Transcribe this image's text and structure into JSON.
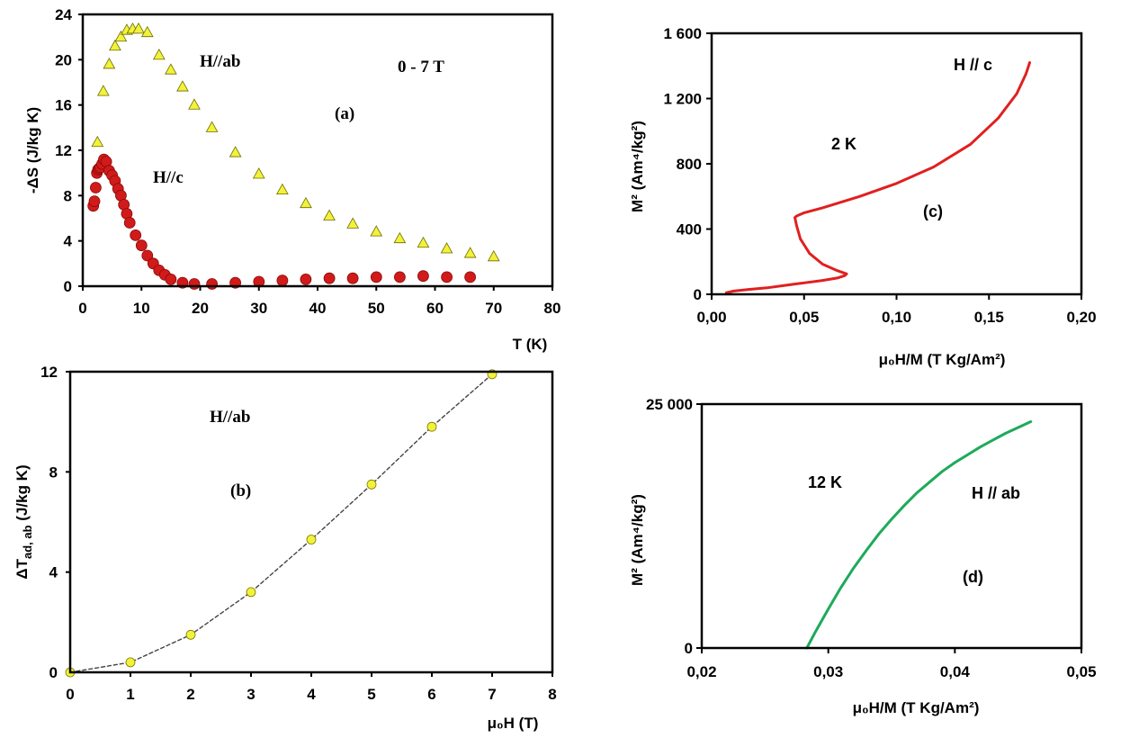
{
  "chart_data": [
    {
      "type": "scatter",
      "xlabel": "T (K)",
      "ylabel": "-ΔS (J/kg K)",
      "xlim": [
        0,
        80
      ],
      "ylim": [
        0,
        24
      ],
      "xticks": [
        "0",
        "10",
        "20",
        "30",
        "40",
        "50",
        "60",
        "70",
        "80"
      ],
      "yticks": [
        "0",
        "4",
        "8",
        "12",
        "16",
        "20",
        "24"
      ],
      "annotations": [
        "(a)",
        "0 - 7 T",
        "H//ab",
        "H//c"
      ],
      "series": [
        {
          "name": "H//ab",
          "marker": "triangle",
          "color": "#f2f23a",
          "x": [
            2.5,
            3.5,
            4.5,
            5.5,
            6.5,
            7.5,
            8.5,
            9.5,
            11,
            13,
            15,
            17,
            19,
            22,
            26,
            30,
            34,
            38,
            42,
            46,
            50,
            54,
            58,
            62,
            66,
            70
          ],
          "y": [
            12.7,
            17.2,
            19.6,
            21.2,
            22.0,
            22.6,
            22.7,
            22.7,
            22.4,
            20.4,
            19.1,
            17.6,
            16.0,
            14.0,
            11.8,
            9.9,
            8.5,
            7.3,
            6.2,
            5.5,
            4.8,
            4.2,
            3.8,
            3.3,
            2.9,
            2.6
          ]
        },
        {
          "name": "H//c",
          "marker": "circle",
          "color": "#d11a1a",
          "x": [
            1.8,
            2.0,
            2.2,
            2.4,
            2.6,
            2.8,
            3.0,
            3.3,
            3.6,
            4.0,
            4.5,
            5.0,
            5.5,
            6.0,
            6.5,
            7.0,
            7.5,
            8.0,
            9.0,
            10,
            11,
            12,
            13,
            14,
            15,
            17,
            19,
            22,
            26,
            30,
            34,
            38,
            42,
            46,
            50,
            54,
            58,
            62,
            66
          ],
          "y": [
            7.1,
            7.5,
            8.7,
            10.0,
            10.3,
            10.4,
            10.5,
            10.8,
            11.2,
            11.0,
            10.2,
            9.8,
            9.3,
            8.6,
            8.0,
            7.2,
            6.4,
            5.6,
            4.5,
            3.6,
            2.7,
            2.0,
            1.4,
            1.0,
            0.6,
            0.3,
            0.2,
            0.2,
            0.3,
            0.4,
            0.5,
            0.6,
            0.7,
            0.7,
            0.8,
            0.8,
            0.9,
            0.8,
            0.8
          ]
        }
      ]
    },
    {
      "type": "line",
      "xlabel": "μ₀H (T)",
      "ylabel": "ΔT_ad, ab (J/kg K)",
      "ylabel_main": "ΔT",
      "ylabel_sub": "ad, ab",
      "ylabel_rest": " (J/kg K)",
      "xlim": [
        0,
        8
      ],
      "ylim": [
        0,
        12
      ],
      "xticks": [
        "0",
        "1",
        "2",
        "3",
        "4",
        "5",
        "6",
        "7",
        "8"
      ],
      "yticks": [
        "0",
        "4",
        "8",
        "12"
      ],
      "annotations": [
        "(b)",
        "H//ab"
      ],
      "series": [
        {
          "marker": "circle",
          "color": "#f2f23a",
          "line_style": "dashed",
          "x": [
            0,
            1,
            2,
            3,
            4,
            5,
            6,
            7
          ],
          "y": [
            0,
            0.4,
            1.5,
            3.2,
            5.3,
            7.5,
            9.8,
            11.9
          ]
        }
      ]
    },
    {
      "type": "line",
      "xlabel": "μ₀H/M (T Kg/Am²)",
      "ylabel": "M² (Am⁴/kg²)",
      "xlim": [
        0,
        0.2
      ],
      "ylim": [
        0,
        1600
      ],
      "xticks": [
        "0,00",
        "0,05",
        "0,10",
        "0,15",
        "0,20"
      ],
      "yticks": [
        "0",
        "400",
        "800",
        "1 200",
        "1 600"
      ],
      "annotations": [
        "(c)",
        "2 K",
        "H // c"
      ],
      "series": [
        {
          "color": "#e02020",
          "x": [
            0.008,
            0.012,
            0.02,
            0.03,
            0.04,
            0.05,
            0.06,
            0.068,
            0.072,
            0.073,
            0.068,
            0.06,
            0.053,
            0.048,
            0.046,
            0.045,
            0.046,
            0.05,
            0.06,
            0.08,
            0.1,
            0.12,
            0.14,
            0.155,
            0.165,
            0.17,
            0.172
          ],
          "y": [
            10,
            20,
            30,
            40,
            55,
            70,
            85,
            100,
            115,
            125,
            145,
            185,
            250,
            340,
            420,
            470,
            480,
            500,
            530,
            600,
            680,
            780,
            920,
            1080,
            1230,
            1350,
            1420
          ]
        }
      ]
    },
    {
      "type": "line",
      "xlabel": "μ₀H/M (T Kg/Am²)",
      "ylabel": "M² (Am⁴/kg²)",
      "xlim": [
        0.02,
        0.05
      ],
      "ylim": [
        0,
        25000
      ],
      "xticks": [
        "0,02",
        "0,03",
        "0,04",
        "0,05"
      ],
      "yticks": [
        "0",
        "25 000"
      ],
      "annotations": [
        "(d)",
        "12 K",
        "H // ab"
      ],
      "series": [
        {
          "color": "#1daa5a",
          "x": [
            0.0283,
            0.029,
            0.03,
            0.031,
            0.032,
            0.033,
            0.034,
            0.035,
            0.036,
            0.037,
            0.038,
            0.039,
            0.04,
            0.041,
            0.042,
            0.043,
            0.044,
            0.045,
            0.046
          ],
          "y": [
            0,
            1700,
            4000,
            6200,
            8200,
            10000,
            11700,
            13200,
            14600,
            15900,
            17000,
            18100,
            19000,
            19800,
            20600,
            21300,
            22000,
            22600,
            23200
          ]
        }
      ]
    }
  ]
}
